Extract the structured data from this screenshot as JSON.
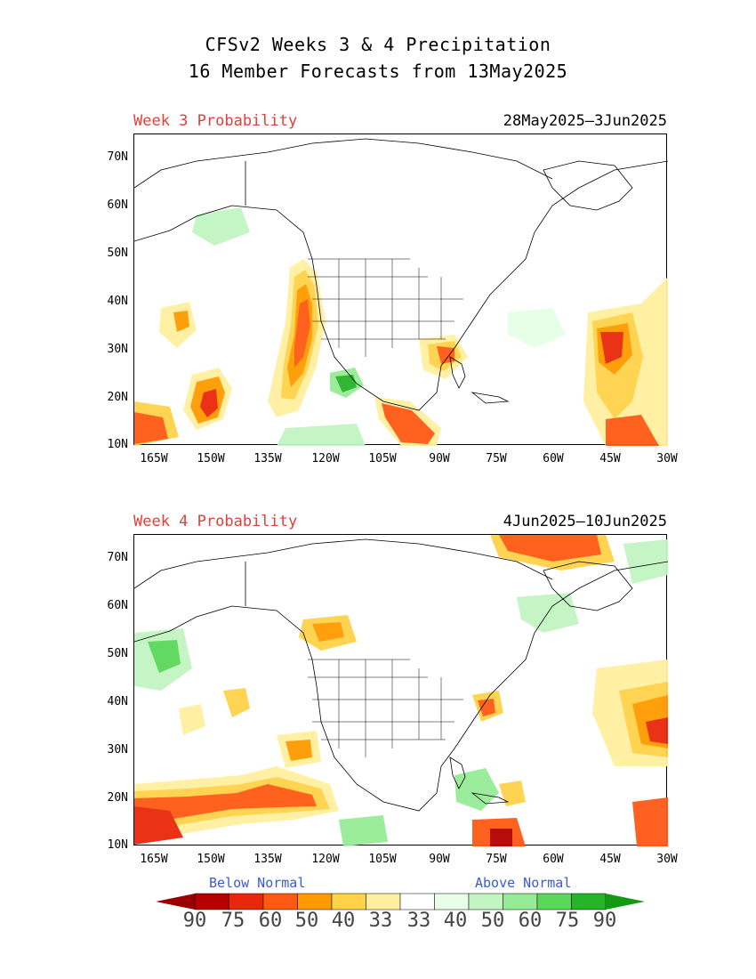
{
  "title": {
    "line1": "CFSv2 Weeks 3 & 4 Precipitation",
    "line2": "16 Member Forecasts from 13May2025"
  },
  "panels": [
    {
      "label": "Week 3 Probability",
      "dates": "28May2025—3Jun2025"
    },
    {
      "label": "Week 4 Probability",
      "dates": "4Jun2025—10Jun2025"
    }
  ],
  "axes": {
    "lat_labels": [
      "70N",
      "60N",
      "50N",
      "40N",
      "30N",
      "20N",
      "10N"
    ],
    "lon_labels": [
      "165W",
      "150W",
      "135W",
      "120W",
      "105W",
      "90W",
      "75W",
      "60W",
      "45W",
      "30W"
    ]
  },
  "legend": {
    "below_label": "Below Normal",
    "above_label": "Above Normal",
    "values": [
      "90",
      "75",
      "60",
      "50",
      "40",
      "33",
      "33",
      "40",
      "50",
      "60",
      "75",
      "90"
    ],
    "colors": [
      "#b40000",
      "#e8280a",
      "#ff5a14",
      "#ff9a00",
      "#ffd24a",
      "#fff0a0",
      "#ffffff",
      "#e6ffe6",
      "#c2f5c2",
      "#96eb96",
      "#5ad85a",
      "#28b428"
    ],
    "below_arrow_color": "#9a0000",
    "above_arrow_color": "#139a13"
  }
}
